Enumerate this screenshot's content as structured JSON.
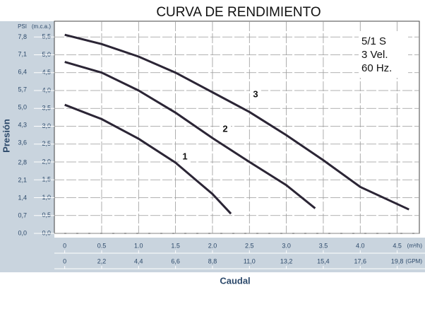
{
  "chart_data": {
    "type": "line",
    "title": "CURVA DE RENDIMIENTO",
    "ylabel": "Presión",
    "xlabel": "Caudal",
    "y_unit_label": "(m.c.a.)",
    "y2_unit_label": "PSI",
    "x_unit_label": "(m³/h)",
    "x2_unit_label": "(GPM)",
    "spec_lines": [
      "5/1 S",
      "3 Vel.",
      "60 Hz."
    ],
    "xlim": [
      -0.14,
      4.8
    ],
    "xticks": [
      0,
      0.5,
      {
        "value": 1,
        "label": "1.0"
      },
      1.5,
      {
        "value": 2,
        "label": "2.0"
      },
      2.5,
      {
        "value": 3,
        "label": "3.0"
      },
      3.5,
      {
        "value": 4,
        "label": "4.0"
      },
      4.5
    ],
    "x2lim": [
      -0.616,
      21.12
    ],
    "x2ticks": [
      0,
      {
        "value": 2.2,
        "label": "2,2"
      },
      {
        "value": 4.4,
        "label": "4,4"
      },
      {
        "value": 6.6,
        "label": "6,6"
      },
      {
        "value": 8.8,
        "label": "8,8"
      },
      {
        "value": 11,
        "label": "11,0"
      },
      {
        "value": 13.2,
        "label": "13,2"
      },
      {
        "value": 15.4,
        "label": "15,4"
      },
      {
        "value": 17.6,
        "label": "17,6"
      },
      {
        "value": 19.8,
        "label": "19,8"
      }
    ],
    "ylim": [
      0,
      5.94
    ],
    "yticks": [
      {
        "value": 0,
        "label": "0,0"
      },
      {
        "value": 0.5,
        "label": "0,5"
      },
      {
        "value": 1,
        "label": "1,0"
      },
      {
        "value": 1.5,
        "label": "1,5"
      },
      {
        "value": 2,
        "label": "2,0"
      },
      {
        "value": 2.5,
        "label": "2,5"
      },
      {
        "value": 3,
        "label": "3,0"
      },
      {
        "value": 3.5,
        "label": "3,5"
      },
      {
        "value": 4,
        "label": "4,0"
      },
      {
        "value": 4.5,
        "label": "4,5"
      },
      {
        "value": 5,
        "label": "5,0"
      },
      {
        "value": 5.5,
        "label": "5,5"
      }
    ],
    "y2lim": [
      0,
      8.43
    ],
    "y2ticks": [
      {
        "value": 0,
        "label": "0,0"
      },
      {
        "value": 0.7,
        "label": "0,7"
      },
      {
        "value": 1.4,
        "label": "1,4"
      },
      {
        "value": 2.1,
        "label": "2,1"
      },
      {
        "value": 2.8,
        "label": "2,8"
      },
      {
        "value": 3.6,
        "label": "3,6"
      },
      {
        "value": 4.3,
        "label": "4,3"
      },
      {
        "value": 5,
        "label": "5,0"
      },
      {
        "value": 5.7,
        "label": "5,7"
      },
      {
        "value": 6.4,
        "label": "6,4"
      },
      {
        "value": 7.1,
        "label": "7,1"
      },
      {
        "value": 7.8,
        "label": "7,8"
      }
    ],
    "grid": true,
    "series": [
      {
        "name": "1",
        "color": "#2b2535",
        "x": [
          0,
          0.5,
          1.0,
          1.5,
          2.0,
          2.25
        ],
        "values": [
          3.6,
          3.2,
          2.65,
          1.98,
          1.1,
          0.55
        ]
      },
      {
        "name": "2",
        "color": "#2b2535",
        "x": [
          0,
          0.5,
          1.0,
          1.5,
          2.0,
          2.5,
          3.0,
          3.39
        ],
        "values": [
          4.8,
          4.5,
          4.0,
          3.38,
          2.67,
          2.0,
          1.35,
          0.7
        ]
      },
      {
        "name": "3",
        "color": "#2b2535",
        "x": [
          0,
          0.5,
          1.0,
          1.5,
          2.0,
          2.5,
          3.0,
          3.5,
          4.0,
          4.66
        ],
        "values": [
          5.56,
          5.3,
          4.95,
          4.5,
          3.95,
          3.4,
          2.75,
          2.05,
          1.3,
          0.67
        ]
      }
    ]
  }
}
